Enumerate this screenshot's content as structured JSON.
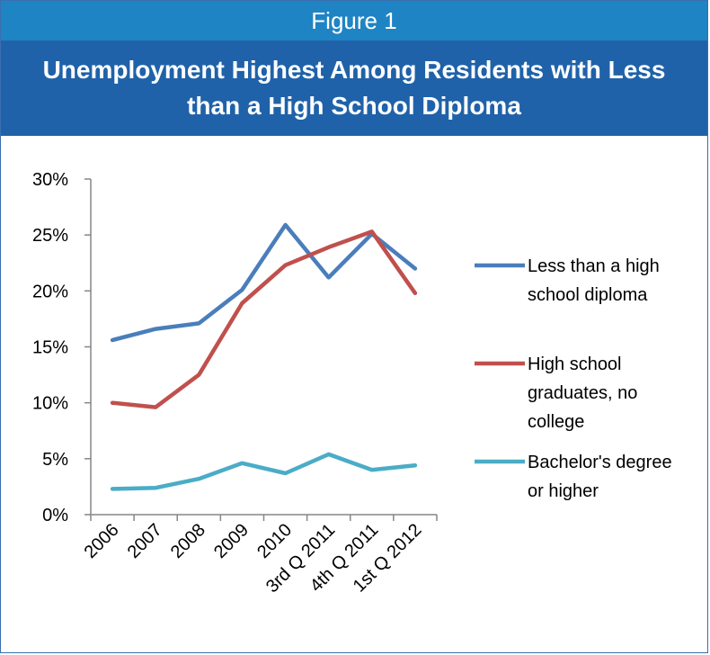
{
  "header": {
    "figure_label": "Figure 1",
    "title": "Unemployment Highest Among Residents with Less than a High School Diploma"
  },
  "colors": {
    "header_bg": "#1f84c4",
    "title_bg": "#1f62a9",
    "series": [
      "#4a7ebb",
      "#c0504d",
      "#4bacc6"
    ]
  },
  "chart_data": {
    "type": "line",
    "title": "",
    "xlabel": "",
    "ylabel": "",
    "categories": [
      "2006",
      "2007",
      "2008",
      "2009",
      "2010",
      "3rd Q 2011",
      "4th Q 2011",
      "1st Q 2012"
    ],
    "ylim": [
      0,
      30
    ],
    "yticks": [
      "0%",
      "5%",
      "10%",
      "15%",
      "20%",
      "25%",
      "30%"
    ],
    "grid": false,
    "legend_position": "right",
    "series": [
      {
        "name_lines": [
          "Less than a high",
          "school diploma"
        ],
        "name": "Less than a high school diploma",
        "values": [
          15.6,
          16.6,
          17.1,
          20.1,
          25.9,
          21.2,
          25.1,
          22.0
        ]
      },
      {
        "name_lines": [
          "High school",
          "graduates, no",
          "college"
        ],
        "name": "High school graduates, no college",
        "values": [
          10.0,
          9.6,
          12.5,
          18.9,
          22.3,
          23.9,
          25.3,
          19.8
        ]
      },
      {
        "name_lines": [
          "Bachelor's degree",
          "or higher"
        ],
        "name": "Bachelor's degree or higher",
        "values": [
          2.3,
          2.4,
          3.2,
          4.6,
          3.7,
          5.4,
          4.0,
          4.4
        ]
      }
    ]
  }
}
